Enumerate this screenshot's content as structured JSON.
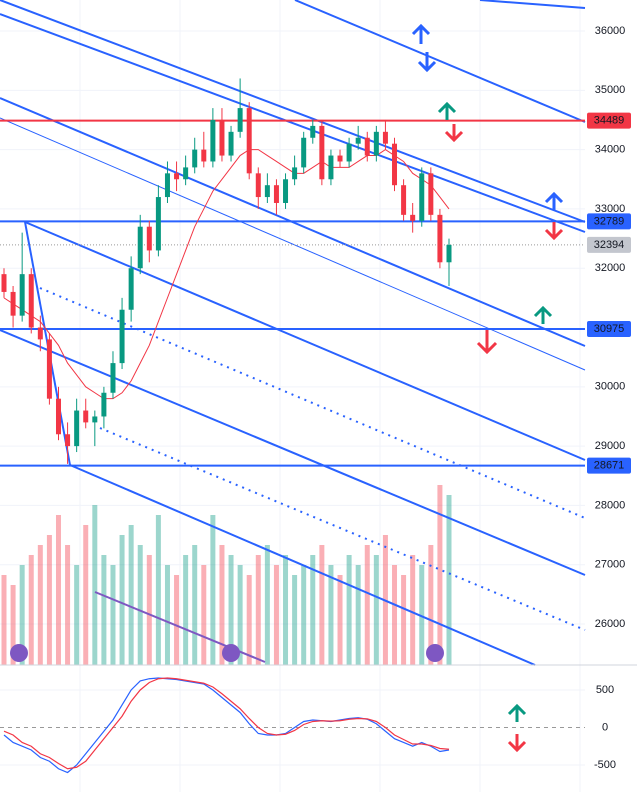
{
  "chart_data": {
    "type": "candlestick",
    "open": [
      31900,
      31600,
      31200,
      31900,
      31000,
      30800,
      29800,
      29200,
      29000,
      29600,
      29400,
      29500,
      29900,
      30400,
      31300,
      32000,
      32700,
      32300,
      33200,
      33600,
      33500,
      33700,
      34000,
      33800,
      34500,
      33900,
      34300,
      34700,
      33600,
      33200,
      33400,
      33100,
      33500,
      33700,
      34200,
      34400,
      33500,
      33900,
      33800,
      34100,
      34200,
      33900,
      34300,
      34100,
      33400,
      32900,
      32800,
      33600,
      32900,
      32100
    ],
    "high": [
      32000,
      31700,
      32600,
      32000,
      31200,
      30900,
      30000,
      29400,
      29800,
      29800,
      29600,
      30000,
      30600,
      31500,
      32200,
      32900,
      32800,
      33400,
      33800,
      33800,
      33900,
      34200,
      34300,
      34700,
      34700,
      34400,
      35200,
      34800,
      33700,
      33600,
      33500,
      33600,
      33900,
      34300,
      34500,
      34500,
      34000,
      34000,
      34200,
      34400,
      34300,
      34400,
      34500,
      34200,
      33500,
      33100,
      33700,
      33700,
      33000,
      32500
    ],
    "low": [
      31500,
      31000,
      31100,
      30900,
      30600,
      29700,
      29100,
      28700,
      28900,
      29300,
      29000,
      29300,
      29800,
      30300,
      31100,
      31900,
      32100,
      32200,
      33100,
      33300,
      33400,
      33600,
      33700,
      33700,
      33800,
      33800,
      34200,
      33500,
      33000,
      33100,
      32900,
      33000,
      33400,
      33600,
      34100,
      33400,
      33400,
      33700,
      33700,
      34000,
      33800,
      33800,
      34000,
      33300,
      32800,
      32600,
      32700,
      32800,
      32000,
      31700
    ],
    "close": [
      31600,
      31200,
      31900,
      31000,
      30800,
      29800,
      29200,
      29000,
      29600,
      29400,
      29500,
      29900,
      30400,
      31300,
      32000,
      32700,
      32300,
      33200,
      33600,
      33500,
      33700,
      34000,
      33800,
      34500,
      33900,
      34300,
      34700,
      33600,
      33200,
      33400,
      33100,
      33500,
      33700,
      34200,
      34400,
      33500,
      33900,
      33800,
      34100,
      34200,
      33900,
      34300,
      34100,
      33400,
      32900,
      32800,
      33600,
      32900,
      32100,
      32394
    ],
    "up_color": "#089981",
    "down_color": "#f23645",
    "ma": {
      "color": "#f23645",
      "values": [
        31500,
        31400,
        31300,
        31200,
        31100,
        30900,
        30700,
        30400,
        30200,
        30000,
        29900,
        29800,
        29800,
        29900,
        30100,
        30400,
        30700,
        31100,
        31500,
        31900,
        32300,
        32700,
        33000,
        33300,
        33500,
        33700,
        33900,
        34000,
        34000,
        33900,
        33800,
        33700,
        33600,
        33600,
        33700,
        33800,
        33700,
        33700,
        33700,
        33800,
        33900,
        33900,
        34000,
        33900,
        33800,
        33600,
        33500,
        33400,
        33200,
        33000
      ]
    },
    "volume": [
      90,
      80,
      100,
      110,
      120,
      130,
      150,
      120,
      100,
      140,
      160,
      110,
      100,
      130,
      140,
      120,
      110,
      150,
      100,
      90,
      110,
      120,
      100,
      150,
      120,
      110,
      100,
      90,
      110,
      120,
      100,
      110,
      90,
      100,
      110,
      120,
      100,
      90,
      110,
      100,
      120,
      110,
      130,
      100,
      90,
      110,
      100,
      120,
      180,
      170
    ],
    "ylim": [
      25309,
      36523
    ],
    "yticks": [
      26000,
      27000,
      28000,
      29000,
      30000,
      32000,
      33000,
      34000,
      35000,
      36000
    ],
    "levels": [
      {
        "value": 34489,
        "color": "#f23645"
      },
      {
        "value": 32789,
        "color": "#2962ff"
      },
      {
        "value": 30975,
        "color": "#2962ff"
      },
      {
        "value": 28671,
        "color": "#2962ff"
      }
    ],
    "macd": {
      "ylim": [
        -860,
        833
      ],
      "yticks": [
        500,
        0,
        -500
      ],
      "series": [
        {
          "color": "#2962ff",
          "values": [
            -100,
            -200,
            -250,
            -300,
            -400,
            -450,
            -550,
            -600,
            -500,
            -350,
            -200,
            -50,
            100,
            300,
            500,
            620,
            650,
            660,
            650,
            640,
            620,
            600,
            580,
            500,
            400,
            300,
            200,
            50,
            -80,
            -100,
            -100,
            -80,
            0,
            80,
            100,
            90,
            80,
            100,
            120,
            130,
            110,
            50,
            -50,
            -150,
            -200,
            -250,
            -200,
            -250,
            -320,
            -300
          ]
        },
        {
          "color": "#f23645",
          "values": [
            -50,
            -100,
            -200,
            -250,
            -350,
            -400,
            -480,
            -550,
            -530,
            -450,
            -300,
            -150,
            0,
            150,
            350,
            500,
            600,
            650,
            660,
            650,
            630,
            610,
            590,
            540,
            450,
            350,
            250,
            120,
            0,
            -80,
            -100,
            -90,
            -40,
            40,
            80,
            90,
            85,
            90,
            110,
            120,
            115,
            80,
            0,
            -100,
            -160,
            -220,
            -220,
            -240,
            -280,
            -290
          ]
        }
      ]
    }
  }
}
